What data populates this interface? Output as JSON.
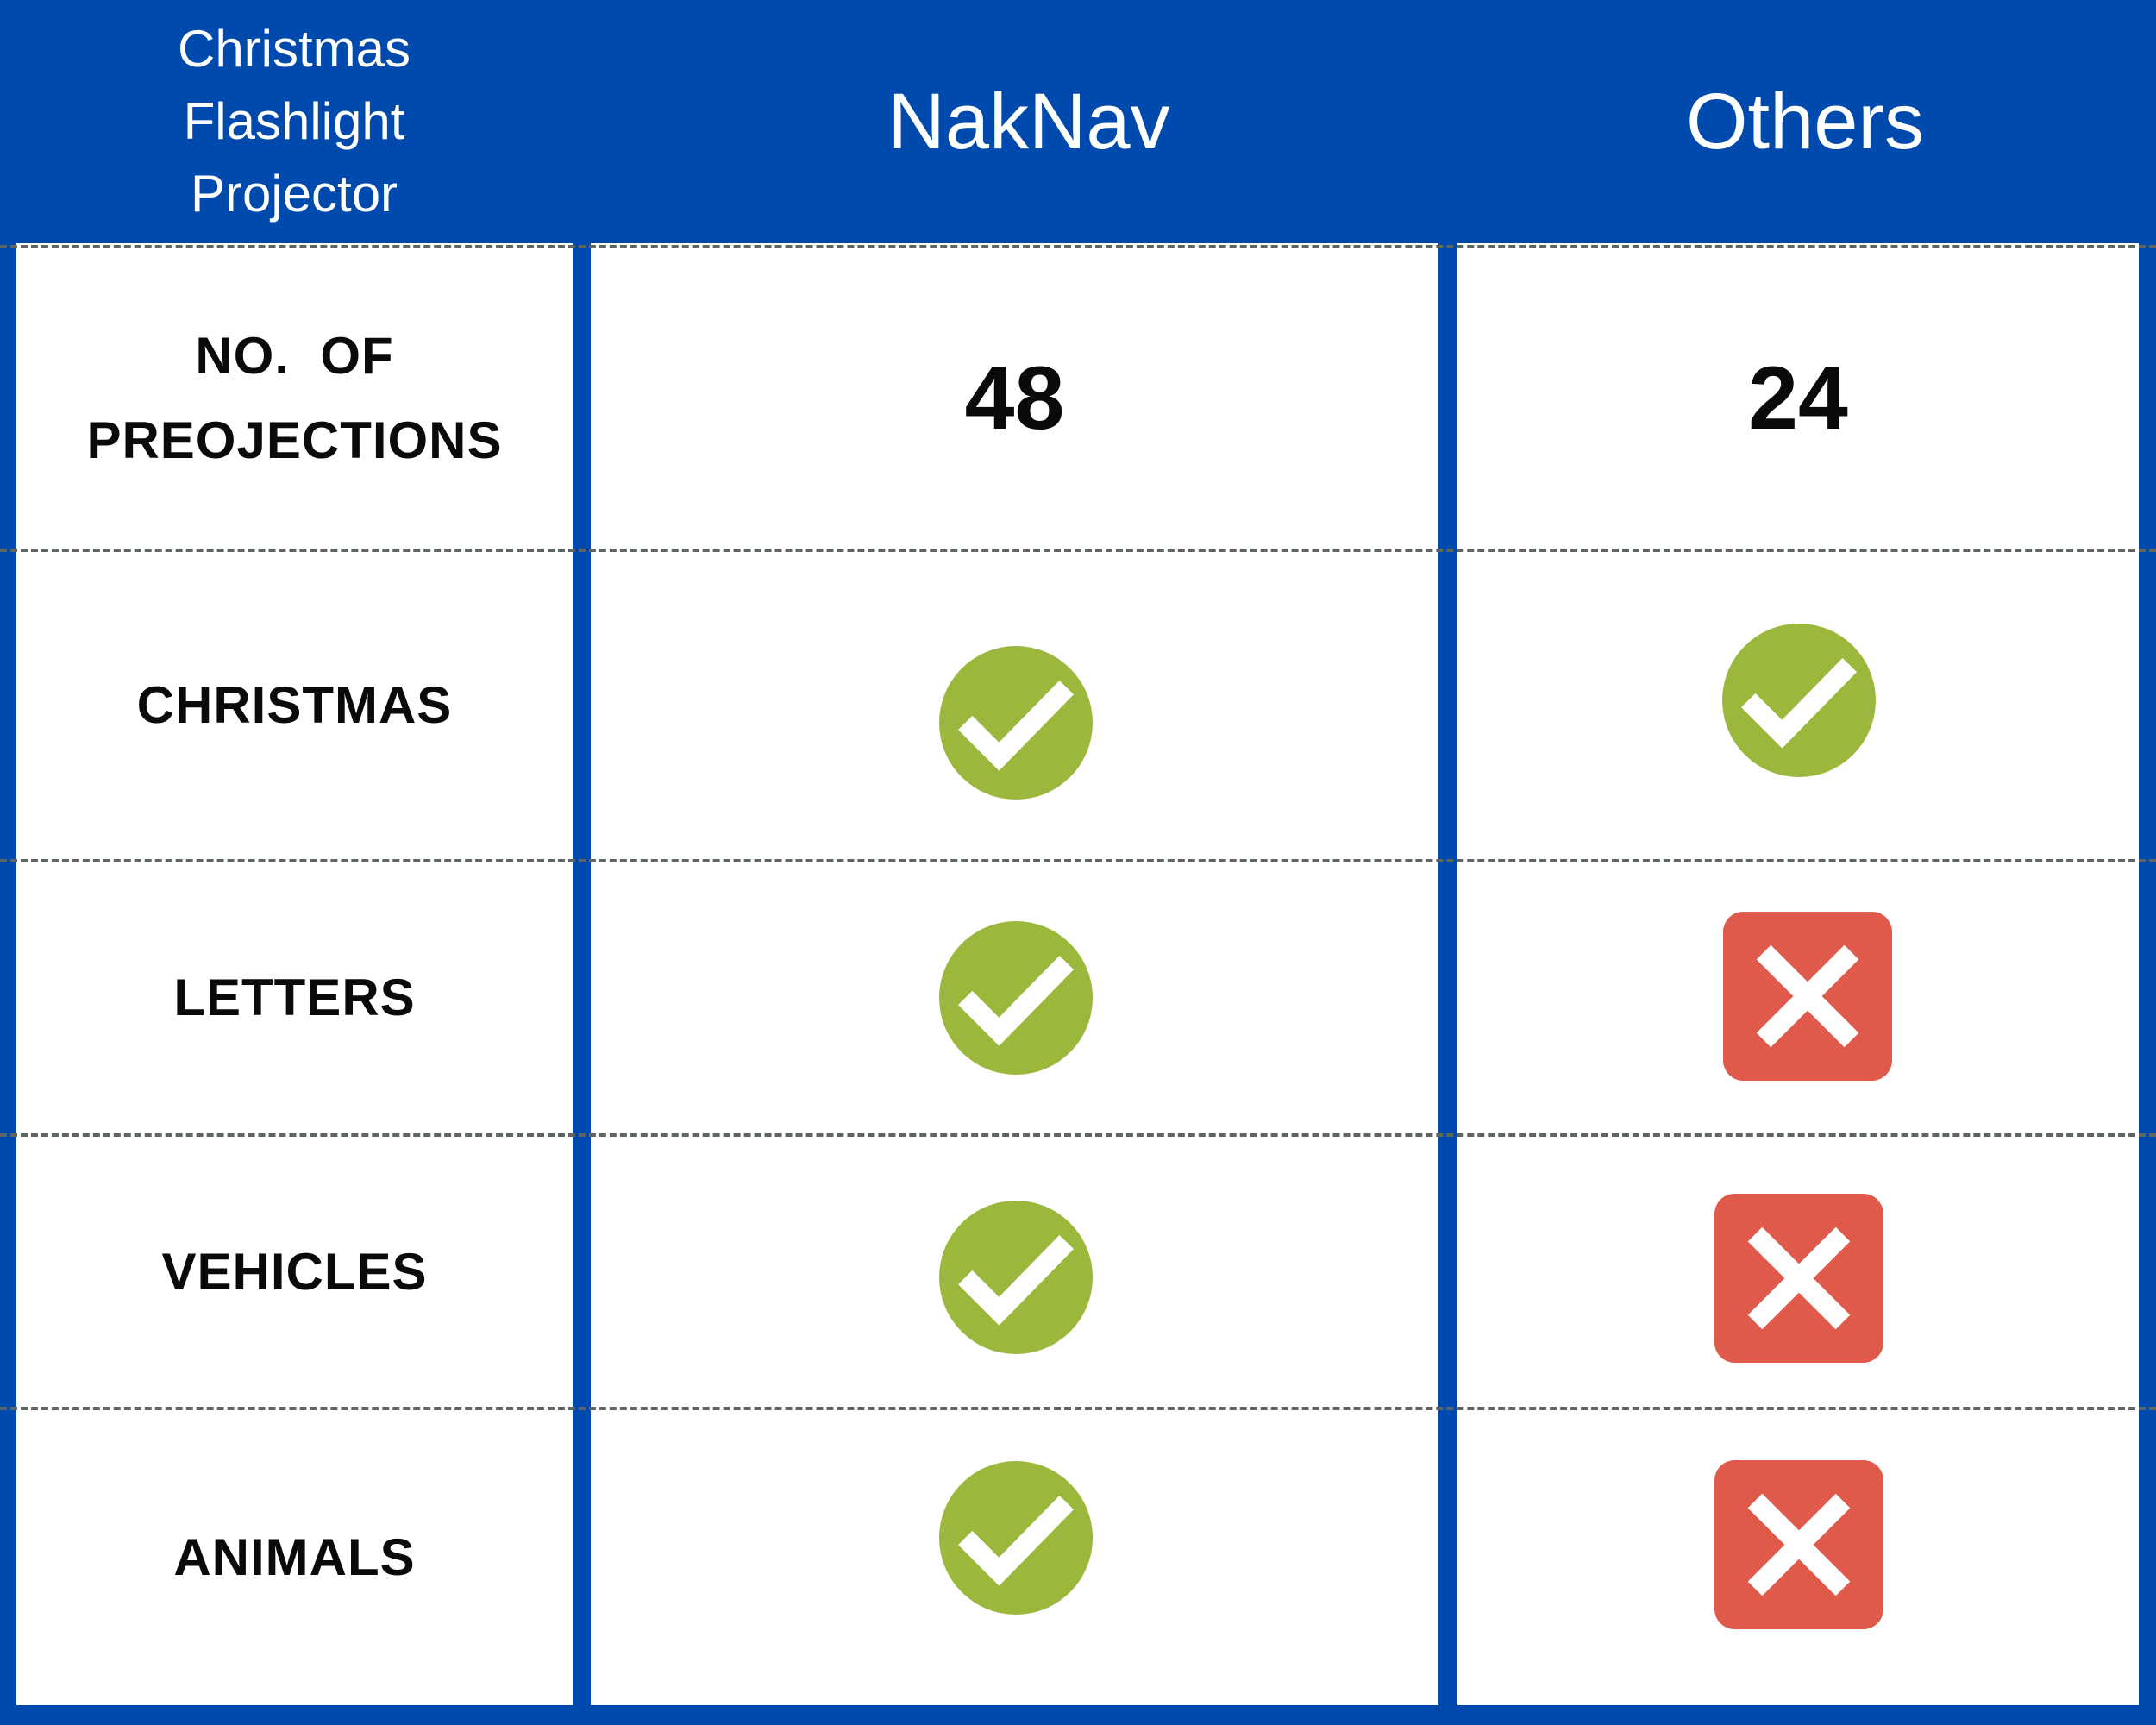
{
  "header": {
    "label_lines": [
      "Christmas",
      "Flashlight",
      "Projector"
    ],
    "col1": "NakNav",
    "col2": "Others"
  },
  "rows": [
    {
      "label_lines": [
        "NO.  OF",
        "PREOJECTIONS"
      ],
      "naknav": "48",
      "others": "24"
    },
    {
      "label": "CHRISTMAS",
      "naknav": "check",
      "others": "check"
    },
    {
      "label": "LETTERS",
      "naknav": "check",
      "others": "cross"
    },
    {
      "label": "VEHICLES",
      "naknav": "check",
      "others": "cross"
    },
    {
      "label": "ANIMALS",
      "naknav": "check",
      "others": "cross"
    }
  ],
  "icons": {
    "check": "check-circle-icon",
    "cross": "cross-square-icon"
  },
  "colors": {
    "header_bg": "#004aad",
    "check": "#9bb83c",
    "cross": "#e05a4c",
    "divider": "#5f6662"
  }
}
